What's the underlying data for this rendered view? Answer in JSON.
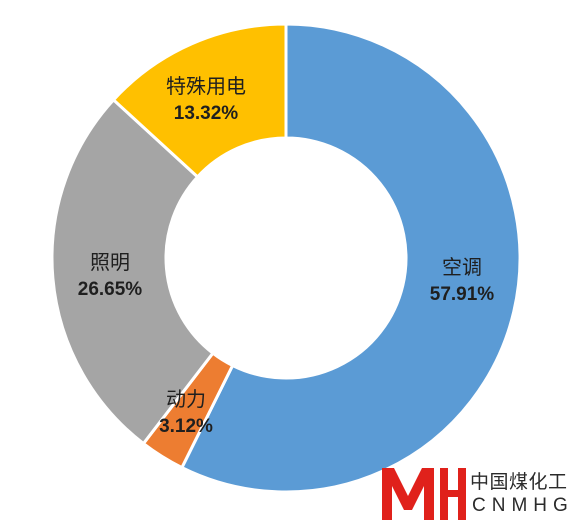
{
  "chart_data": {
    "type": "pie",
    "style": "donut",
    "title": "",
    "legend": "none",
    "slices": [
      {
        "label": "空调",
        "value": 57.91,
        "value_label": "57.91%",
        "color": "#5B9BD5"
      },
      {
        "label": "动力",
        "value": 3.12,
        "value_label": "3.12%",
        "color": "#ED7D31"
      },
      {
        "label": "照明",
        "value": 26.65,
        "value_label": "26.65%",
        "color": "#A5A5A5"
      },
      {
        "label": "特殊用电",
        "value": 13.32,
        "value_label": "13.32%",
        "color": "#FFC000"
      }
    ]
  },
  "watermark": {
    "name_cn": "中国煤化工",
    "name_en": "CNMHG",
    "color": "#E0211B"
  }
}
